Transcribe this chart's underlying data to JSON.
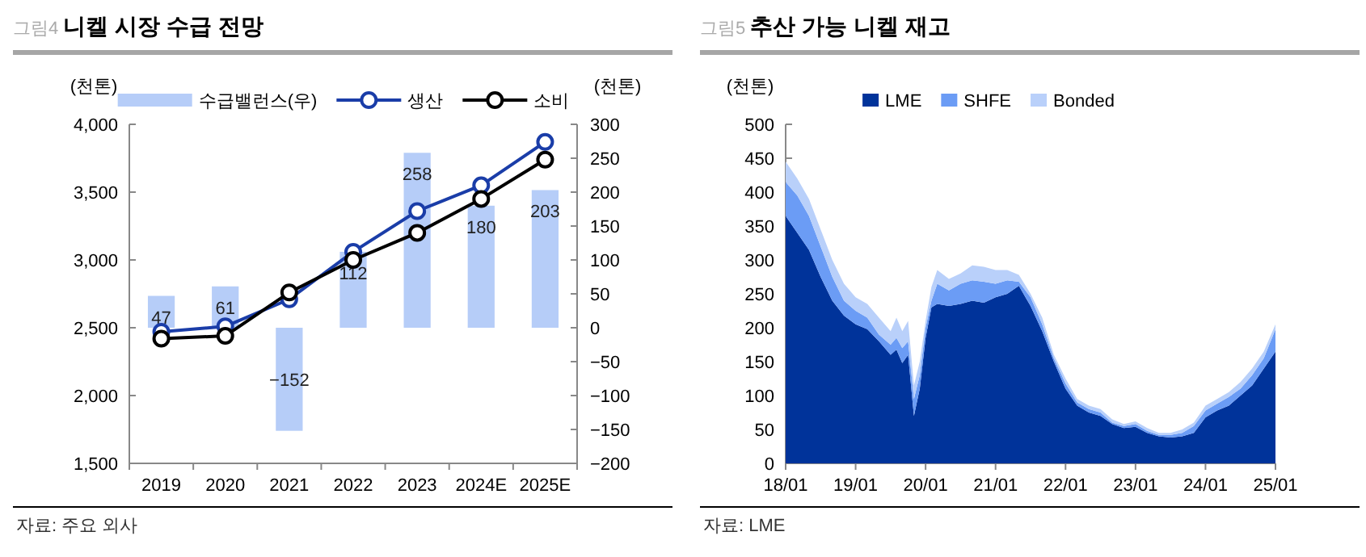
{
  "chart_data": [
    {
      "type": "bar",
      "title": "그림4 니켈 시장 수급 전망",
      "ylabel": "(천톤)",
      "y2label": "(천톤)",
      "legend": "top",
      "marker": "circle",
      "categories": [
        "2019",
        "2020",
        "2021",
        "2022",
        "2023",
        "2024E",
        "2025E"
      ],
      "series": [
        {
          "name": "수급밸런스(우)",
          "axis": "y2",
          "color": "#b6cdf8",
          "values": [
            47,
            61,
            -152,
            112,
            258,
            180,
            203
          ],
          "value_labels": [
            "47",
            "61",
            "−152",
            "112",
            "258",
            "180",
            "203"
          ]
        },
        {
          "name": "생산",
          "type": "line",
          "color": "#1a3da8",
          "values": [
            2470,
            2510,
            2710,
            3060,
            3360,
            3550,
            3870
          ]
        },
        {
          "name": "소비",
          "type": "line",
          "color": "#000000",
          "values": [
            2420,
            2440,
            2760,
            3000,
            3200,
            3450,
            3740
          ]
        }
      ],
      "ylim": [
        1500,
        4000
      ],
      "yticks": [
        {
          "value": 1500,
          "label": "1,500"
        },
        {
          "value": 2000,
          "label": "2,000"
        },
        {
          "value": 2500,
          "label": "2,500"
        },
        {
          "value": 3000,
          "label": "3,000"
        },
        {
          "value": 3500,
          "label": "3,500"
        },
        {
          "value": 4000,
          "label": "4,000"
        }
      ],
      "y2lim": [
        -200,
        300
      ],
      "y2ticks": [
        {
          "value": -200,
          "label": "−200"
        },
        {
          "value": -150,
          "label": "−150"
        },
        {
          "value": -100,
          "label": "−100"
        },
        {
          "value": -50,
          "label": "−50"
        },
        0,
        50,
        100,
        150,
        200,
        250,
        300
      ],
      "annotations": [
        "자료: 주요 외사"
      ]
    },
    {
      "type": "area",
      "stacked": true,
      "title": "그림5 추산 가능 니켈 재고",
      "ylabel": "(천톤)",
      "legend": "top",
      "x": [
        "2018-01",
        "2018-03",
        "2018-05",
        "2018-07",
        "2018-09",
        "2018-11",
        "2019-01",
        "2019-03",
        "2019-05",
        "2019-07",
        "2019-08",
        "2019-09",
        "2019-10",
        "2019-11",
        "2019-12",
        "2020-01",
        "2020-02",
        "2020-03",
        "2020-05",
        "2020-07",
        "2020-09",
        "2020-11",
        "2021-01",
        "2021-03",
        "2021-05",
        "2021-07",
        "2021-09",
        "2021-11",
        "2022-01",
        "2022-03",
        "2022-05",
        "2022-07",
        "2022-09",
        "2022-11",
        "2023-01",
        "2023-03",
        "2023-05",
        "2023-07",
        "2023-09",
        "2023-11",
        "2024-01",
        "2024-03",
        "2024-05",
        "2024-07",
        "2024-09",
        "2024-11",
        "2025-01"
      ],
      "series": [
        {
          "name": "LME",
          "color": "#00339a",
          "values": [
            365,
            340,
            315,
            275,
            240,
            218,
            205,
            198,
            180,
            160,
            168,
            148,
            160,
            70,
            110,
            185,
            230,
            235,
            232,
            235,
            240,
            237,
            245,
            250,
            262,
            232,
            195,
            150,
            110,
            85,
            75,
            70,
            58,
            52,
            54,
            45,
            40,
            38,
            40,
            45,
            68,
            78,
            85,
            100,
            115,
            140,
            165
          ]
        },
        {
          "name": "SHFE",
          "color": "#6b9cf5",
          "values": [
            50,
            55,
            50,
            45,
            35,
            22,
            20,
            17,
            10,
            15,
            17,
            22,
            20,
            25,
            20,
            15,
            10,
            30,
            23,
            30,
            30,
            31,
            20,
            20,
            6,
            13,
            10,
            5,
            8,
            5,
            5,
            5,
            2,
            3,
            4,
            3,
            2,
            4,
            5,
            10,
            10,
            10,
            13,
            10,
            15,
            15,
            33
          ]
        },
        {
          "name": "Bonded",
          "color": "#b9d0fa",
          "values": [
            30,
            25,
            25,
            25,
            25,
            25,
            20,
            20,
            25,
            20,
            30,
            25,
            30,
            20,
            20,
            10,
            20,
            20,
            17,
            15,
            22,
            22,
            20,
            15,
            10,
            5,
            10,
            5,
            7,
            5,
            5,
            5,
            5,
            3,
            4,
            4,
            3,
            3,
            5,
            5,
            7,
            7,
            7,
            10,
            10,
            10,
            7
          ]
        }
      ],
      "xlim": [
        "2018-01",
        "2025-01"
      ],
      "xticks": [
        {
          "value": "2018-01",
          "label": "18/01"
        },
        {
          "value": "2019-01",
          "label": "19/01"
        },
        {
          "value": "2020-01",
          "label": "20/01"
        },
        {
          "value": "2021-01",
          "label": "21/01"
        },
        {
          "value": "2022-01",
          "label": "22/01"
        },
        {
          "value": "2023-01",
          "label": "23/01"
        },
        {
          "value": "2024-01",
          "label": "24/01"
        },
        {
          "value": "2025-01",
          "label": "25/01"
        }
      ],
      "ylim": [
        0,
        500
      ],
      "yticks": [
        0,
        50,
        100,
        150,
        200,
        250,
        300,
        350,
        400,
        450,
        500
      ],
      "annotations": [
        "자료: LME"
      ]
    }
  ]
}
